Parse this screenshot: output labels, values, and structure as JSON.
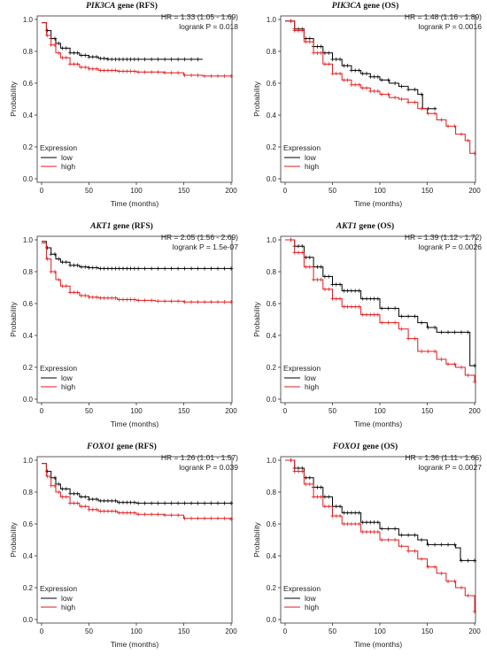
{
  "colors": {
    "low": "#000000",
    "high": "#e31a1c",
    "axis": "#333333"
  },
  "chart_data": [
    {
      "type": "line",
      "gene": "PIK3CA",
      "title_suffix": " gene (RFS)",
      "hr_text": "HR = 1.33 (1.05 - 1.69)",
      "p_text": "logrank P = 0.018",
      "xlabel": "Time (months)",
      "ylabel": "Probability",
      "xlim": [
        0,
        200
      ],
      "ylim": [
        0,
        1
      ],
      "xticks": [
        "0",
        "50",
        "100",
        "150",
        "200"
      ],
      "yticks": [
        "0.0",
        "0.2",
        "0.4",
        "0.6",
        "0.8",
        "1.0"
      ],
      "legend_title": "Expression",
      "series": [
        {
          "name": "low",
          "color": "#000000",
          "x": [
            0,
            5,
            10,
            15,
            20,
            30,
            40,
            50,
            60,
            70,
            80,
            100,
            120,
            150,
            170
          ],
          "values": [
            0.98,
            0.93,
            0.88,
            0.85,
            0.82,
            0.79,
            0.775,
            0.765,
            0.755,
            0.75,
            0.75,
            0.75,
            0.75,
            0.75,
            0.75
          ]
        },
        {
          "name": "high",
          "color": "#e31a1c",
          "x": [
            0,
            5,
            10,
            15,
            20,
            30,
            40,
            50,
            60,
            80,
            100,
            130,
            150,
            170,
            200
          ],
          "values": [
            0.98,
            0.9,
            0.84,
            0.79,
            0.76,
            0.72,
            0.7,
            0.69,
            0.68,
            0.675,
            0.67,
            0.665,
            0.65,
            0.645,
            0.645
          ]
        }
      ]
    },
    {
      "type": "line",
      "gene": "PIK3CA",
      "title_suffix": " gene (OS)",
      "hr_text": "HR = 1.48 (1.16 - 1.89)",
      "p_text": "logrank P = 0.0016",
      "xlabel": "Time (months)",
      "ylabel": "Probability",
      "xlim": [
        0,
        200
      ],
      "ylim": [
        0,
        1
      ],
      "xticks": [
        "0",
        "50",
        "100",
        "150",
        "200"
      ],
      "yticks": [
        "0.0",
        "0.2",
        "0.4",
        "0.6",
        "0.8",
        "1.0"
      ],
      "legend_title": "Expression",
      "series": [
        {
          "name": "low",
          "color": "#000000",
          "x": [
            0,
            10,
            20,
            30,
            40,
            50,
            60,
            70,
            80,
            90,
            100,
            110,
            120,
            130,
            140,
            145,
            150,
            160
          ],
          "values": [
            0.99,
            0.94,
            0.88,
            0.83,
            0.79,
            0.75,
            0.71,
            0.68,
            0.66,
            0.64,
            0.62,
            0.6,
            0.58,
            0.56,
            0.53,
            0.44,
            0.44,
            0.44
          ]
        },
        {
          "name": "high",
          "color": "#e31a1c",
          "x": [
            0,
            10,
            20,
            30,
            40,
            50,
            60,
            70,
            80,
            90,
            100,
            110,
            120,
            130,
            140,
            150,
            160,
            170,
            180,
            190,
            195,
            200
          ],
          "values": [
            0.99,
            0.93,
            0.86,
            0.79,
            0.72,
            0.66,
            0.62,
            0.59,
            0.57,
            0.55,
            0.53,
            0.51,
            0.5,
            0.48,
            0.44,
            0.41,
            0.37,
            0.33,
            0.28,
            0.24,
            0.16,
            0.16
          ]
        }
      ]
    },
    {
      "type": "line",
      "gene": "AKT1",
      "title_suffix": " gene (RFS)",
      "hr_text": "HR = 2.05 (1.56 - 2.69)",
      "p_text": "logrank P = 1.5e-07",
      "xlabel": "Time (months)",
      "ylabel": "Probability",
      "xlim": [
        0,
        200
      ],
      "ylim": [
        0,
        1
      ],
      "xticks": [
        "0",
        "50",
        "100",
        "150",
        "200"
      ],
      "yticks": [
        "0.0",
        "0.2",
        "0.4",
        "0.6",
        "0.8",
        "1.0"
      ],
      "legend_title": "Expression",
      "series": [
        {
          "name": "low",
          "color": "#000000",
          "x": [
            0,
            5,
            10,
            15,
            20,
            30,
            40,
            50,
            60,
            80,
            100,
            150,
            200
          ],
          "values": [
            0.99,
            0.95,
            0.91,
            0.88,
            0.86,
            0.84,
            0.83,
            0.825,
            0.82,
            0.82,
            0.82,
            0.82,
            0.82
          ]
        },
        {
          "name": "high",
          "color": "#e31a1c",
          "x": [
            0,
            5,
            10,
            15,
            20,
            30,
            40,
            50,
            60,
            80,
            100,
            120,
            150,
            200
          ],
          "values": [
            0.98,
            0.88,
            0.8,
            0.75,
            0.71,
            0.67,
            0.65,
            0.64,
            0.635,
            0.625,
            0.62,
            0.615,
            0.61,
            0.61
          ]
        }
      ]
    },
    {
      "type": "line",
      "gene": "AKT1",
      "title_suffix": " gene (OS)",
      "hr_text": "HR = 1.39 (1.12 - 1.72)",
      "p_text": "logrank P = 0.0026",
      "xlabel": "Time (months)",
      "ylabel": "Probability",
      "xlim": [
        0,
        200
      ],
      "ylim": [
        0,
        1
      ],
      "xticks": [
        "0",
        "50",
        "100",
        "150",
        "200"
      ],
      "yticks": [
        "0.0",
        "0.2",
        "0.4",
        "0.6",
        "0.8",
        "1.0"
      ],
      "legend_title": "Expression",
      "series": [
        {
          "name": "low",
          "color": "#000000",
          "x": [
            0,
            10,
            20,
            30,
            40,
            50,
            60,
            80,
            100,
            120,
            140,
            150,
            160,
            180,
            195,
            200
          ],
          "values": [
            1.0,
            0.96,
            0.89,
            0.83,
            0.77,
            0.72,
            0.68,
            0.63,
            0.57,
            0.52,
            0.48,
            0.45,
            0.42,
            0.42,
            0.21,
            0.21
          ]
        },
        {
          "name": "high",
          "color": "#e31a1c",
          "x": [
            0,
            10,
            20,
            30,
            40,
            50,
            60,
            80,
            100,
            120,
            130,
            140,
            150,
            160,
            170,
            180,
            190,
            200
          ],
          "values": [
            1.0,
            0.92,
            0.83,
            0.75,
            0.69,
            0.63,
            0.58,
            0.53,
            0.48,
            0.44,
            0.38,
            0.3,
            0.3,
            0.25,
            0.22,
            0.2,
            0.15,
            0.11
          ]
        }
      ]
    },
    {
      "type": "line",
      "gene": "FOXO1",
      "title_suffix": " gene (RFS)",
      "hr_text": "HR = 1.26 (1.01 - 1.57)",
      "p_text": "logrank P = 0.039",
      "xlabel": "Time (months)",
      "ylabel": "Probability",
      "xlim": [
        0,
        200
      ],
      "ylim": [
        0,
        1
      ],
      "xticks": [
        "0",
        "50",
        "100",
        "150",
        "200"
      ],
      "yticks": [
        "0.0",
        "0.2",
        "0.4",
        "0.6",
        "0.8",
        "1.0"
      ],
      "legend_title": "Expression",
      "series": [
        {
          "name": "low",
          "color": "#000000",
          "x": [
            0,
            5,
            10,
            15,
            20,
            30,
            40,
            50,
            60,
            80,
            100,
            150,
            200
          ],
          "values": [
            0.98,
            0.93,
            0.89,
            0.85,
            0.82,
            0.79,
            0.77,
            0.755,
            0.745,
            0.735,
            0.73,
            0.73,
            0.73
          ]
        },
        {
          "name": "high",
          "color": "#e31a1c",
          "x": [
            0,
            5,
            10,
            15,
            20,
            30,
            40,
            50,
            60,
            80,
            100,
            130,
            150,
            200
          ],
          "values": [
            0.98,
            0.9,
            0.84,
            0.8,
            0.77,
            0.73,
            0.71,
            0.69,
            0.68,
            0.67,
            0.66,
            0.655,
            0.635,
            0.63
          ]
        }
      ]
    },
    {
      "type": "line",
      "gene": "FOXO1",
      "title_suffix": " gene (OS)",
      "hr_text": "HR = 1.36 (1.11 - 1.66)",
      "p_text": "logrank P = 0.0027",
      "xlabel": "Time (months)",
      "ylabel": "Probability",
      "xlim": [
        0,
        200
      ],
      "ylim": [
        0,
        1
      ],
      "xticks": [
        "0",
        "50",
        "100",
        "150",
        "200"
      ],
      "yticks": [
        "0.0",
        "0.2",
        "0.4",
        "0.6",
        "0.8",
        "1.0"
      ],
      "legend_title": "Expression",
      "series": [
        {
          "name": "low",
          "color": "#000000",
          "x": [
            0,
            10,
            20,
            30,
            40,
            50,
            60,
            80,
            100,
            120,
            140,
            150,
            160,
            180,
            185,
            200
          ],
          "values": [
            1.0,
            0.95,
            0.89,
            0.83,
            0.77,
            0.71,
            0.67,
            0.61,
            0.57,
            0.53,
            0.5,
            0.47,
            0.47,
            0.45,
            0.37,
            0.37
          ]
        },
        {
          "name": "high",
          "color": "#e31a1c",
          "x": [
            0,
            10,
            20,
            30,
            40,
            50,
            60,
            80,
            100,
            120,
            130,
            140,
            150,
            160,
            170,
            180,
            190,
            200
          ],
          "values": [
            1.0,
            0.93,
            0.85,
            0.77,
            0.71,
            0.65,
            0.6,
            0.55,
            0.5,
            0.46,
            0.43,
            0.38,
            0.33,
            0.29,
            0.24,
            0.2,
            0.15,
            0.05
          ]
        }
      ]
    }
  ]
}
